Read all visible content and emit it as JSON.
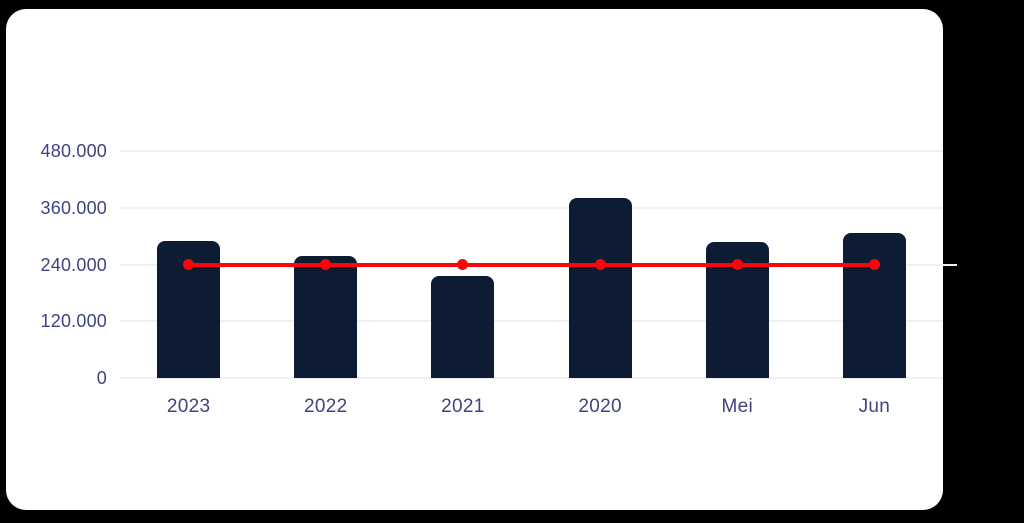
{
  "page": {
    "background_color": "#000000",
    "card_color": "#ffffff"
  },
  "chart_data": {
    "type": "bar",
    "categories": [
      "2023",
      "2022",
      "2021",
      "2020",
      "Mei",
      "Jun"
    ],
    "series": [
      {
        "name": "bar-values",
        "type": "bar",
        "color": "#0d1b33",
        "values": [
          290000,
          258000,
          215000,
          380000,
          288000,
          307000
        ]
      },
      {
        "name": "reference-line",
        "type": "line",
        "color": "#fa050a",
        "values": [
          240000,
          240000,
          240000,
          240000,
          240000,
          240000
        ]
      }
    ],
    "title": "",
    "xlabel": "",
    "ylabel": "",
    "ylim": [
      0,
      480000
    ],
    "y_axis_ticks": [
      {
        "value": 480000,
        "label": "480.000"
      },
      {
        "value": 360000,
        "label": "360.000"
      },
      {
        "value": 240000,
        "label": "240.000"
      },
      {
        "value": 120000,
        "label": "120.000"
      },
      {
        "value": 0,
        "label": "0"
      }
    ],
    "grid": true,
    "legend": false,
    "colors": {
      "axis_label": "#3e4383",
      "gridline": "#eef0f4"
    }
  }
}
